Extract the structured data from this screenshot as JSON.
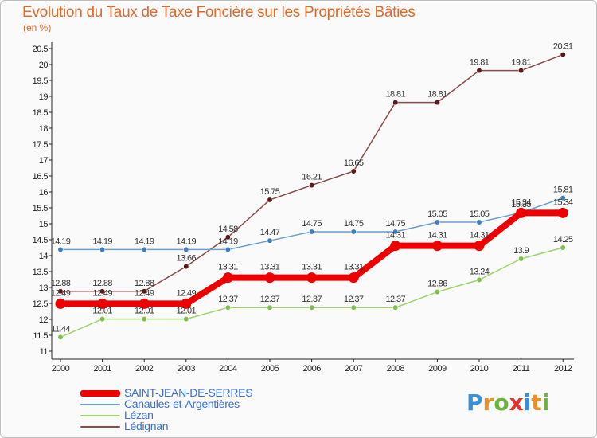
{
  "header": {
    "title": "Evolution du Taux de Taxe Foncière sur les Propriétés Bâties",
    "subtitle": "(en %)"
  },
  "logo": {
    "letters": [
      "P",
      "r",
      "o",
      "x",
      "i",
      "t",
      "i"
    ],
    "colors": [
      "#3b8fd6",
      "#e8912a",
      "#6ab43e",
      "#e0352c",
      "#3b8fd6",
      "#e8912a",
      "#6ab43e"
    ]
  },
  "chart_data": {
    "type": "line",
    "title": "Evolution du Taux de Taxe Foncière sur les Propriétés Bâties",
    "ylabel": "(en %)",
    "xlabel": "",
    "ylim": [
      11,
      20.5
    ],
    "ytick_step": 0.5,
    "yticks": [
      "11",
      "11.5",
      "12",
      "12.5",
      "13",
      "13.5",
      "14",
      "14.5",
      "15",
      "15.5",
      "16",
      "16.5",
      "17",
      "17.5",
      "18",
      "18.5",
      "19",
      "19.5",
      "20",
      "20.5"
    ],
    "grid": false,
    "legend_position": "bottom-left",
    "categories": [
      "2000",
      "2001",
      "2002",
      "2003",
      "2004",
      "2005",
      "2006",
      "2007",
      "2008",
      "2009",
      "2010",
      "2011",
      "2012"
    ],
    "series": [
      {
        "name": "SAINT-JEAN-DE-SERRES",
        "color": "#ee0000",
        "values": [
          12.49,
          12.49,
          12.49,
          12.49,
          13.31,
          13.31,
          13.31,
          13.31,
          14.31,
          14.31,
          14.31,
          15.34,
          15.34
        ],
        "labels": [
          "12.49",
          "12.49",
          "12.49",
          "12.49",
          "13.31",
          "13.31",
          "13.31",
          "13.31",
          "14.31",
          "14.31",
          "14.31",
          "15.34",
          "15.34"
        ]
      },
      {
        "name": "Canaules-et-Argentières",
        "color": "#6a9fcf",
        "values": [
          14.19,
          14.19,
          14.19,
          14.19,
          14.19,
          14.47,
          14.75,
          14.75,
          14.75,
          15.05,
          15.05,
          15.35,
          15.81
        ],
        "labels": [
          "14.19",
          "14.19",
          "14.19",
          "14.19",
          "14.19",
          "14.47",
          "14.75",
          "14.75",
          "14.75",
          "15.05",
          "15.05",
          "15.35",
          "15.81"
        ]
      },
      {
        "name": "Lézan",
        "color": "#9fd36e",
        "values": [
          11.44,
          12.01,
          12.01,
          12.01,
          12.37,
          12.37,
          12.37,
          12.37,
          12.37,
          12.86,
          13.24,
          13.9,
          14.25
        ],
        "labels": [
          "11.44",
          "12.01",
          "12.01",
          "12.01",
          "12.37",
          "12.37",
          "12.37",
          "12.37",
          "12.37",
          "12.86",
          "13.24",
          "13.9",
          "14.25"
        ]
      },
      {
        "name": "Lédignan",
        "color": "#8a4a4a",
        "values": [
          12.88,
          12.88,
          12.88,
          13.66,
          14.58,
          15.75,
          16.21,
          16.65,
          18.81,
          18.81,
          19.81,
          19.81,
          20.31
        ],
        "labels": [
          "12.88",
          "12.88",
          "12.88",
          "13.66",
          "14.58",
          "15.75",
          "16.21",
          "16.65",
          "18.81",
          "18.81",
          "19.81",
          "19.81",
          "20.31"
        ]
      }
    ]
  }
}
